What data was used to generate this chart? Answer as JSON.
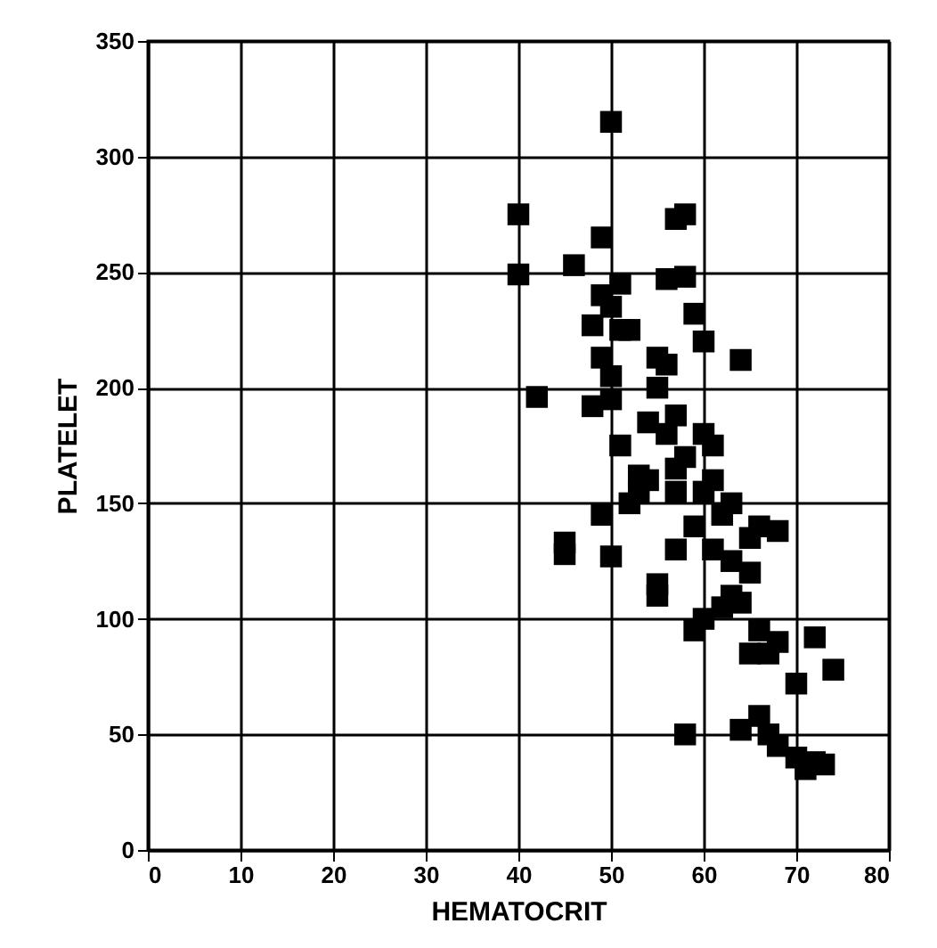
{
  "chart_data": {
    "type": "scatter",
    "xlabel": "HEMATOCRIT",
    "ylabel": "PLATELET",
    "xlim": [
      0,
      80
    ],
    "ylim": [
      0,
      350
    ],
    "xticks": [
      0,
      10,
      20,
      30,
      40,
      50,
      60,
      70,
      80
    ],
    "yticks": [
      0,
      50,
      100,
      150,
      200,
      250,
      300,
      350
    ],
    "grid": true,
    "marker": "square",
    "series": [
      {
        "color": "#000000",
        "x": [
          40,
          40,
          50,
          42,
          45,
          45,
          46,
          48,
          48,
          49,
          49,
          49,
          49,
          50,
          50,
          50,
          50,
          51,
          51,
          52,
          51,
          52,
          53,
          53,
          54,
          54,
          55,
          55,
          55,
          55,
          56,
          56,
          56,
          57,
          57,
          57,
          57,
          57,
          58,
          58,
          58,
          58,
          59,
          59,
          59,
          60,
          60,
          60,
          61,
          61,
          61,
          62,
          62,
          63,
          63,
          63,
          64,
          64,
          64,
          65,
          65,
          66,
          66,
          66,
          67,
          67,
          68,
          68,
          68,
          70,
          70,
          71,
          72,
          72,
          73,
          74,
          65,
          60
        ],
        "values": [
          275,
          249,
          315,
          196,
          133,
          128,
          253,
          227,
          192,
          265,
          240,
          213,
          145,
          235,
          205,
          195,
          127,
          245,
          225,
          225,
          175,
          150,
          162,
          155,
          185,
          160,
          213,
          200,
          115,
          110,
          247,
          210,
          180,
          273,
          188,
          165,
          155,
          130,
          248,
          275,
          170,
          50,
          232,
          140,
          95,
          220,
          180,
          155,
          175,
          160,
          130,
          145,
          105,
          150,
          125,
          110,
          212,
          52,
          107,
          135,
          120,
          140,
          95,
          58,
          85,
          50,
          138,
          90,
          45,
          72,
          40,
          35,
          92,
          38,
          37,
          78,
          85,
          100
        ]
      }
    ]
  }
}
